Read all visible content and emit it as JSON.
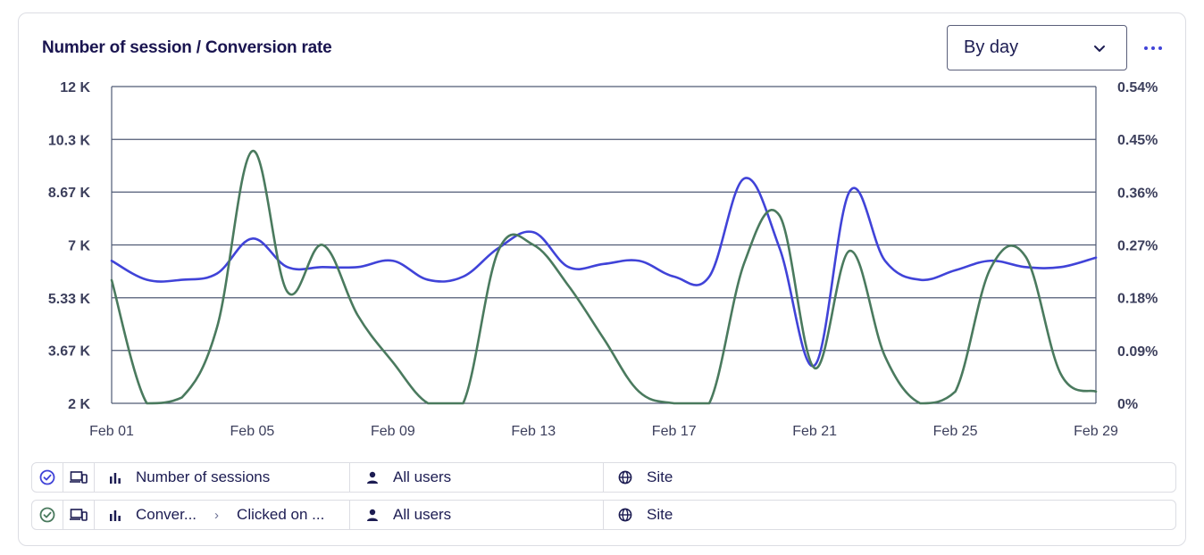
{
  "header": {
    "title": "Number of session / Conversion rate",
    "granularity_select": {
      "value": "By day"
    },
    "more_menu_icon": "more-horizontal-icon"
  },
  "chart_data": {
    "type": "line",
    "title": "Number of session / Conversion rate",
    "x": [
      "Feb 01",
      "Feb 02",
      "Feb 03",
      "Feb 04",
      "Feb 05",
      "Feb 06",
      "Feb 07",
      "Feb 08",
      "Feb 09",
      "Feb 10",
      "Feb 11",
      "Feb 12",
      "Feb 13",
      "Feb 14",
      "Feb 15",
      "Feb 16",
      "Feb 17",
      "Feb 18",
      "Feb 19",
      "Feb 20",
      "Feb 21",
      "Feb 22",
      "Feb 23",
      "Feb 24",
      "Feb 25",
      "Feb 26",
      "Feb 27",
      "Feb 28",
      "Feb 29"
    ],
    "x_tick_labels": [
      "Feb 01",
      "Feb 05",
      "Feb 09",
      "Feb 13",
      "Feb 17",
      "Feb 21",
      "Feb 25",
      "Feb 29"
    ],
    "y_left": {
      "range": [
        2000,
        12000
      ],
      "tick_labels": [
        "2 K",
        "3.67 K",
        "5.33 K",
        "7 K",
        "8.67 K",
        "10.3 K",
        "12 K"
      ],
      "tick_values": [
        2000,
        3670,
        5330,
        7000,
        8670,
        10330,
        12000
      ]
    },
    "y_right": {
      "range": [
        0,
        0.54
      ],
      "tick_labels": [
        "0%",
        "0.09%",
        "0.18%",
        "0.27%",
        "0.36%",
        "0.45%",
        "0.54%"
      ],
      "tick_values": [
        0,
        0.09,
        0.18,
        0.27,
        0.36,
        0.45,
        0.54
      ]
    },
    "grid": "horizontal",
    "series": [
      {
        "axis": "left",
        "color": "#4043d8",
        "values": [
          6500,
          5900,
          5900,
          6100,
          7200,
          6300,
          6300,
          6300,
          6500,
          5900,
          6000,
          6900,
          7400,
          6300,
          6400,
          6500,
          6000,
          6000,
          9100,
          6900,
          3200,
          8700,
          6500,
          5900,
          6200,
          6500,
          6300,
          6300,
          6600
        ]
      },
      {
        "axis": "right",
        "color": "#4a7a5e",
        "values": [
          0.21,
          0.0,
          0.01,
          0.13,
          0.43,
          0.19,
          0.27,
          0.15,
          0.07,
          0.0,
          0.0,
          0.26,
          0.27,
          0.2,
          0.11,
          0.02,
          0.0,
          0.0,
          0.24,
          0.32,
          0.06,
          0.26,
          0.08,
          0.0,
          0.02,
          0.23,
          0.25,
          0.05,
          0.02
        ]
      }
    ]
  },
  "legend": [
    {
      "check_color": "#4043d8",
      "check_icon": "circle-check-icon",
      "device_icon": "devices-icon",
      "metric_icon": "bar-chart-icon",
      "metric": "Number of sessions",
      "users_icon": "user-icon",
      "users": "All users",
      "site_icon": "globe-icon",
      "site": "Site"
    },
    {
      "check_color": "#4a7a5e",
      "check_icon": "circle-check-icon",
      "device_icon": "devices-icon",
      "metric_icon": "bar-chart-icon",
      "metric": "Conver...",
      "metric_sub": "Clicked on ...",
      "users_icon": "user-icon",
      "users": "All users",
      "site_icon": "globe-icon",
      "site": "Site"
    }
  ]
}
